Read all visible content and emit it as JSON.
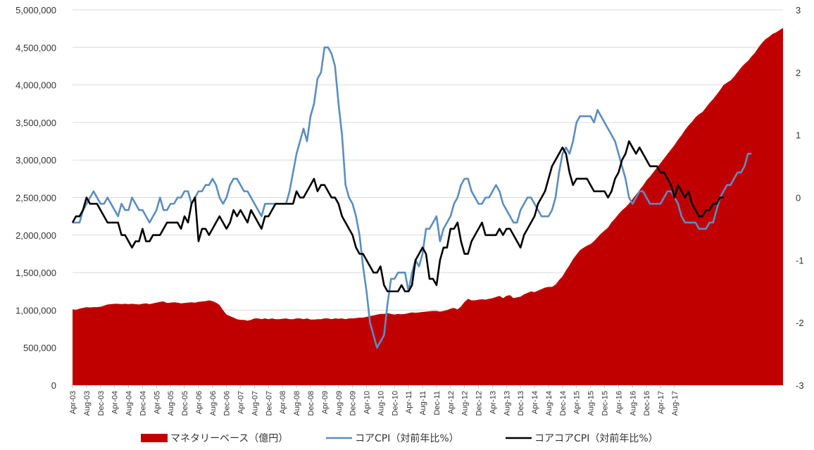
{
  "chart_data": {
    "type": "area",
    "title": "",
    "grid": true,
    "legend_position": "bottom",
    "x_tick_labels": [
      "Apr-03",
      "Aug-03",
      "Dec-03",
      "Apr-04",
      "Aug-04",
      "Dec-04",
      "Apr-05",
      "Aug-05",
      "Dec-05",
      "Apr-06",
      "Aug-06",
      "Dec-06",
      "Apr-07",
      "Aug-07",
      "Dec-07",
      "Apr-08",
      "Aug-08",
      "Dec-08",
      "Apr-09",
      "Aug-09",
      "Dec-09",
      "Apr-10",
      "Aug-10",
      "Dec-10",
      "Apr-11",
      "Aug-11",
      "Dec-11",
      "Apr-12",
      "Aug-12",
      "Dec-12",
      "Apr-13",
      "Aug-13",
      "Dec-13",
      "Apr-14",
      "Aug-14",
      "Dec-14",
      "Apr-15",
      "Aug-15",
      "Dec-15",
      "Apr-16",
      "Aug-16",
      "Dec-16",
      "Apr-17",
      "Aug-17"
    ],
    "y_left": {
      "ylim": [
        0,
        5000000
      ],
      "ticks": [
        "0",
        "500,000",
        "1,000,000",
        "1,500,000",
        "2,000,000",
        "2,500,000",
        "3,000,000",
        "3,500,000",
        "4,000,000",
        "4,500,000",
        "5,000,000"
      ]
    },
    "y_right": {
      "ylim": [
        -3,
        3
      ],
      "ticks": [
        "-3",
        "-2",
        "-1",
        "0",
        "1",
        "2",
        "3"
      ]
    },
    "colors": {
      "monetary_base": "#C00000",
      "core_cpi": "#5B8DC0",
      "core_core_cpi": "#000000",
      "grid": "#D9D9D9"
    },
    "series": [
      {
        "name": "マネタリーベース（億円）",
        "type": "area",
        "axis": "left",
        "x_start": "Apr-03",
        "frequency": "monthly",
        "values": [
          1010000,
          1005000,
          1020000,
          1030000,
          1040000,
          1035000,
          1040000,
          1040000,
          1045000,
          1060000,
          1075000,
          1080000,
          1085000,
          1085000,
          1080000,
          1085000,
          1080000,
          1085000,
          1080000,
          1075000,
          1085000,
          1090000,
          1080000,
          1090000,
          1100000,
          1110000,
          1115000,
          1095000,
          1100000,
          1105000,
          1100000,
          1090000,
          1095000,
          1100000,
          1105000,
          1100000,
          1110000,
          1115000,
          1120000,
          1130000,
          1120000,
          1100000,
          1070000,
          1000000,
          940000,
          920000,
          900000,
          880000,
          870000,
          870000,
          860000,
          870000,
          890000,
          890000,
          880000,
          890000,
          880000,
          890000,
          880000,
          880000,
          885000,
          890000,
          880000,
          880000,
          890000,
          890000,
          880000,
          890000,
          875000,
          875000,
          880000,
          880000,
          890000,
          890000,
          880000,
          890000,
          885000,
          890000,
          880000,
          890000,
          890000,
          895000,
          900000,
          900000,
          910000,
          920000,
          930000,
          940000,
          950000,
          950000,
          960000,
          950000,
          940000,
          950000,
          945000,
          950000,
          960000,
          970000,
          965000,
          970000,
          975000,
          980000,
          985000,
          990000,
          990000,
          980000,
          990000,
          1000000,
          1020000,
          1030000,
          1010000,
          1050000,
          1110000,
          1150000,
          1130000,
          1130000,
          1140000,
          1145000,
          1140000,
          1150000,
          1160000,
          1175000,
          1190000,
          1160000,
          1190000,
          1200000,
          1160000,
          1170000,
          1180000,
          1210000,
          1230000,
          1250000,
          1240000,
          1260000,
          1280000,
          1300000,
          1310000,
          1310000,
          1340000,
          1400000,
          1450000,
          1530000,
          1600000,
          1680000,
          1740000,
          1800000,
          1830000,
          1860000,
          1880000,
          1920000,
          1970000,
          2020000,
          2060000,
          2100000,
          2170000,
          2220000,
          2280000,
          2330000,
          2370000,
          2420000,
          2480000,
          2540000,
          2600000,
          2660000,
          2730000,
          2780000,
          2840000,
          2900000,
          2960000,
          3020000,
          3080000,
          3140000,
          3200000,
          3270000,
          3330000,
          3400000,
          3460000,
          3510000,
          3570000,
          3610000,
          3640000,
          3700000,
          3760000,
          3810000,
          3870000,
          3930000,
          4000000,
          4030000,
          4060000,
          4110000,
          4170000,
          4230000,
          4280000,
          4320000,
          4380000,
          4430000,
          4500000,
          4560000,
          4610000,
          4640000,
          4680000,
          4700000,
          4730000,
          4760000
        ]
      },
      {
        "name": "コアCPI（対前年比%）",
        "type": "line",
        "axis": "right",
        "x_start": "Apr-03",
        "frequency": "monthly",
        "values": [
          -0.4,
          -0.4,
          -0.4,
          -0.2,
          -0.1,
          0.0,
          0.1,
          0.0,
          -0.1,
          -0.1,
          0.0,
          -0.1,
          -0.2,
          -0.3,
          -0.1,
          -0.2,
          -0.2,
          0.0,
          -0.1,
          -0.2,
          -0.2,
          -0.3,
          -0.4,
          -0.3,
          -0.2,
          0.0,
          -0.2,
          -0.2,
          -0.1,
          -0.1,
          0.0,
          0.0,
          0.1,
          0.1,
          -0.1,
          0.0,
          0.1,
          0.1,
          0.2,
          0.2,
          0.3,
          0.2,
          0.0,
          -0.1,
          0.0,
          0.2,
          0.3,
          0.3,
          0.2,
          0.1,
          0.1,
          0.0,
          -0.1,
          -0.2,
          -0.3,
          -0.1,
          -0.1,
          -0.1,
          -0.1,
          -0.1,
          -0.1,
          -0.1,
          0.1,
          0.4,
          0.7,
          0.9,
          1.1,
          0.9,
          1.3,
          1.5,
          1.9,
          2.0,
          2.4,
          2.4,
          2.3,
          2.1,
          1.5,
          1.0,
          0.2,
          0.0,
          -0.1,
          -0.3,
          -0.6,
          -1.1,
          -1.5,
          -2.0,
          -2.2,
          -2.4,
          -2.3,
          -2.2,
          -1.7,
          -1.3,
          -1.3,
          -1.2,
          -1.2,
          -1.2,
          -1.5,
          -1.2,
          -1.0,
          -1.1,
          -0.9,
          -0.5,
          -0.5,
          -0.4,
          -0.3,
          -0.7,
          -0.5,
          -0.4,
          -0.3,
          -0.1,
          0.0,
          0.2,
          0.3,
          0.3,
          0.1,
          0.0,
          -0.1,
          -0.1,
          0.0,
          0.0,
          0.1,
          0.2,
          0.1,
          -0.1,
          -0.2,
          -0.3,
          -0.4,
          -0.4,
          -0.2,
          -0.1,
          0.0,
          0.0,
          -0.1,
          -0.2,
          -0.3,
          -0.3,
          -0.3,
          -0.2,
          0.0,
          0.4,
          0.7,
          0.8,
          0.7,
          0.9,
          1.2,
          1.3,
          1.3,
          1.3,
          1.3,
          1.2,
          1.4,
          1.3,
          1.2,
          1.1,
          1.0,
          0.9,
          0.7,
          0.5,
          0.3,
          0.0,
          -0.1,
          0.0,
          0.1,
          0.1,
          0.0,
          -0.1,
          -0.1,
          -0.1,
          -0.1,
          0.0,
          0.1,
          0.1,
          0.0,
          -0.1,
          -0.3,
          -0.4,
          -0.4,
          -0.4,
          -0.4,
          -0.5,
          -0.5,
          -0.5,
          -0.4,
          -0.4,
          -0.2,
          0.0,
          0.1,
          0.2,
          0.2,
          0.3,
          0.4,
          0.4,
          0.5,
          0.7,
          0.7
        ]
      },
      {
        "name": "コアコアCPI（対前年比%）",
        "type": "line",
        "axis": "right",
        "x_start": "Apr-03",
        "frequency": "monthly",
        "values": [
          -0.4,
          -0.3,
          -0.3,
          -0.2,
          0.0,
          -0.1,
          -0.1,
          -0.1,
          -0.2,
          -0.3,
          -0.4,
          -0.4,
          -0.4,
          -0.4,
          -0.6,
          -0.6,
          -0.7,
          -0.8,
          -0.7,
          -0.7,
          -0.5,
          -0.7,
          -0.7,
          -0.6,
          -0.6,
          -0.6,
          -0.5,
          -0.4,
          -0.4,
          -0.4,
          -0.4,
          -0.5,
          -0.3,
          -0.4,
          -0.1,
          0.0,
          -0.7,
          -0.5,
          -0.5,
          -0.6,
          -0.5,
          -0.4,
          -0.3,
          -0.4,
          -0.5,
          -0.4,
          -0.2,
          -0.3,
          -0.2,
          -0.3,
          -0.4,
          -0.2,
          -0.3,
          -0.4,
          -0.5,
          -0.3,
          -0.3,
          -0.2,
          -0.1,
          -0.1,
          -0.1,
          -0.1,
          -0.1,
          -0.1,
          0.1,
          0.0,
          0.0,
          0.1,
          0.2,
          0.3,
          0.1,
          0.2,
          0.2,
          0.1,
          0.0,
          0.0,
          -0.1,
          -0.3,
          -0.4,
          -0.5,
          -0.6,
          -0.8,
          -0.9,
          -0.9,
          -1.0,
          -1.1,
          -1.2,
          -1.2,
          -1.1,
          -1.4,
          -1.5,
          -1.5,
          -1.5,
          -1.5,
          -1.4,
          -1.5,
          -1.5,
          -1.4,
          -1.0,
          -0.9,
          -0.8,
          -0.9,
          -1.3,
          -1.3,
          -1.4,
          -1.0,
          -0.8,
          -0.8,
          -0.5,
          -0.5,
          -0.4,
          -0.7,
          -0.9,
          -0.9,
          -0.7,
          -0.6,
          -0.5,
          -0.4,
          -0.6,
          -0.6,
          -0.6,
          -0.6,
          -0.5,
          -0.6,
          -0.5,
          -0.5,
          -0.6,
          -0.7,
          -0.8,
          -0.6,
          -0.5,
          -0.4,
          -0.3,
          -0.1,
          0.0,
          0.1,
          0.3,
          0.5,
          0.6,
          0.7,
          0.8,
          0.7,
          0.4,
          0.2,
          0.3,
          0.3,
          0.3,
          0.3,
          0.2,
          0.1,
          0.1,
          0.1,
          0.1,
          0.0,
          0.1,
          0.3,
          0.4,
          0.6,
          0.7,
          0.9,
          0.8,
          0.7,
          0.8,
          0.7,
          0.6,
          0.5,
          0.5,
          0.5,
          0.4,
          0.4,
          0.3,
          0.2,
          0.0,
          0.2,
          0.1,
          0.0,
          0.1,
          -0.1,
          -0.2,
          -0.3,
          -0.3,
          -0.2,
          -0.2,
          -0.1,
          -0.1,
          0.0,
          0.0
        ]
      }
    ]
  }
}
